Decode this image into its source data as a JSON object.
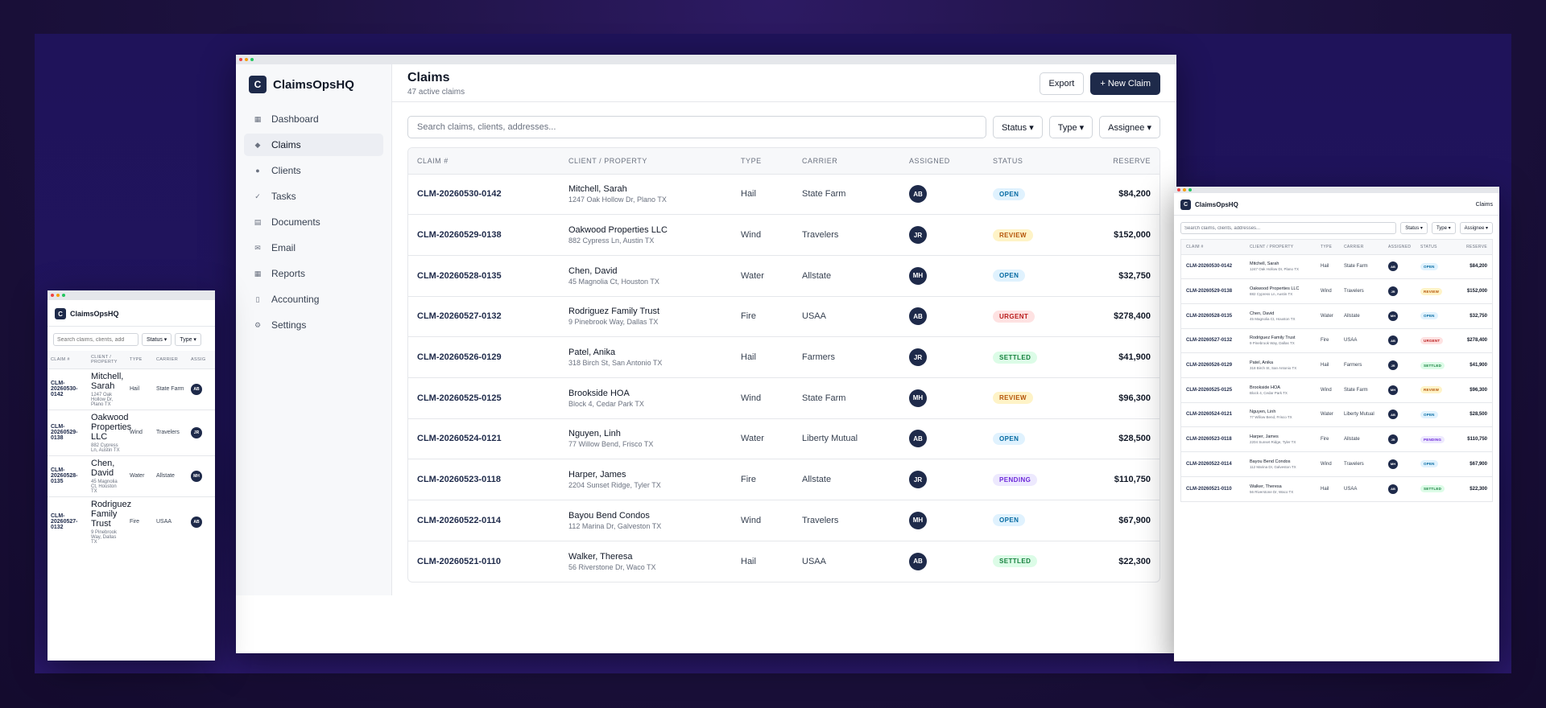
{
  "app": {
    "name": "ClaimsOpsHQ",
    "logo_letter": "C"
  },
  "sidebar": {
    "items": [
      {
        "label": "Dashboard",
        "icon": "dashboard-icon",
        "glyph": "▦"
      },
      {
        "label": "Claims",
        "icon": "claims-icon",
        "glyph": "◆"
      },
      {
        "label": "Clients",
        "icon": "clients-icon",
        "glyph": "●"
      },
      {
        "label": "Tasks",
        "icon": "tasks-icon",
        "glyph": "✓"
      },
      {
        "label": "Documents",
        "icon": "documents-icon",
        "glyph": "▤"
      },
      {
        "label": "Email",
        "icon": "email-icon",
        "glyph": "✉"
      },
      {
        "label": "Reports",
        "icon": "reports-icon",
        "glyph": "▦"
      },
      {
        "label": "Accounting",
        "icon": "accounting-icon",
        "glyph": "▯"
      },
      {
        "label": "Settings",
        "icon": "settings-icon",
        "glyph": "⚙"
      }
    ],
    "active": "Claims"
  },
  "header": {
    "title": "Claims",
    "subtitle": "47 active claims",
    "export_label": "Export",
    "new_claim_label": "+ New Claim"
  },
  "filters": {
    "search_placeholder": "Search claims, clients, addresses...",
    "status_label": "Status ▾",
    "type_label": "Type ▾",
    "assignee_label": "Assignee ▾"
  },
  "table": {
    "columns": [
      "CLAIM #",
      "CLIENT / PROPERTY",
      "TYPE",
      "CARRIER",
      "ASSIGNED",
      "STATUS",
      "RESERVE"
    ],
    "rows": [
      {
        "id": "CLM-20260530-0142",
        "client": "Mitchell, Sarah",
        "address": "1247 Oak Hollow Dr, Plano TX",
        "type": "Hail",
        "carrier": "State Farm",
        "assigned": "AB",
        "status": "OPEN",
        "reserve": "$84,200"
      },
      {
        "id": "CLM-20260529-0138",
        "client": "Oakwood Properties LLC",
        "address": "882 Cypress Ln, Austin TX",
        "type": "Wind",
        "carrier": "Travelers",
        "assigned": "JR",
        "status": "REVIEW",
        "reserve": "$152,000"
      },
      {
        "id": "CLM-20260528-0135",
        "client": "Chen, David",
        "address": "45 Magnolia Ct, Houston TX",
        "type": "Water",
        "carrier": "Allstate",
        "assigned": "MH",
        "status": "OPEN",
        "reserve": "$32,750"
      },
      {
        "id": "CLM-20260527-0132",
        "client": "Rodriguez Family Trust",
        "address": "9 Pinebrook Way, Dallas TX",
        "type": "Fire",
        "carrier": "USAA",
        "assigned": "AB",
        "status": "URGENT",
        "reserve": "$278,400"
      },
      {
        "id": "CLM-20260526-0129",
        "client": "Patel, Anika",
        "address": "318 Birch St, San Antonio TX",
        "type": "Hail",
        "carrier": "Farmers",
        "assigned": "JR",
        "status": "SETTLED",
        "reserve": "$41,900"
      },
      {
        "id": "CLM-20260525-0125",
        "client": "Brookside HOA",
        "address": "Block 4, Cedar Park TX",
        "type": "Wind",
        "carrier": "State Farm",
        "assigned": "MH",
        "status": "REVIEW",
        "reserve": "$96,300"
      },
      {
        "id": "CLM-20260524-0121",
        "client": "Nguyen, Linh",
        "address": "77 Willow Bend, Frisco TX",
        "type": "Water",
        "carrier": "Liberty Mutual",
        "assigned": "AB",
        "status": "OPEN",
        "reserve": "$28,500"
      },
      {
        "id": "CLM-20260523-0118",
        "client": "Harper, James",
        "address": "2204 Sunset Ridge, Tyler TX",
        "type": "Fire",
        "carrier": "Allstate",
        "assigned": "JR",
        "status": "PENDING",
        "reserve": "$110,750"
      },
      {
        "id": "CLM-20260522-0114",
        "client": "Bayou Bend Condos",
        "address": "112 Marina Dr, Galveston TX",
        "type": "Wind",
        "carrier": "Travelers",
        "assigned": "MH",
        "status": "OPEN",
        "reserve": "$67,900"
      },
      {
        "id": "CLM-20260521-0110",
        "client": "Walker, Theresa",
        "address": "56 Riverstone Dr, Waco TX",
        "type": "Hail",
        "carrier": "USAA",
        "assigned": "AB",
        "status": "SETTLED",
        "reserve": "$22,300"
      }
    ]
  },
  "small_view": {
    "search_placeholder": "Search claims, clients, add",
    "columns": [
      "CLAIM #",
      "CLIENT / PROPERTY",
      "TYPE",
      "CARRIER",
      "ASSIG"
    ],
    "rows": [
      {
        "id": "CLM-20260530-0142",
        "client": "Mitchell, Sarah",
        "address": "1247 Oak Hollow Dr, Plano TX",
        "type": "Hail",
        "carrier": "State Farm",
        "assigned": "AB"
      },
      {
        "id": "CLM-20260529-0138",
        "client": "Oakwood Properties LLC",
        "address": "882 Cypress Ln, Austin TX",
        "type": "Wind",
        "carrier": "Travelers",
        "assigned": "JR"
      },
      {
        "id": "CLM-20260528-0135",
        "client": "Chen, David",
        "address": "45 Magnolia Ct, Houston TX",
        "type": "Water",
        "carrier": "Allstate",
        "assigned": "MH"
      },
      {
        "id": "CLM-20260527-0132",
        "client": "Rodriguez Family Trust",
        "address": "9 Pinebrook Way, Dallas TX",
        "type": "Fire",
        "carrier": "USAA",
        "assigned": "AB"
      }
    ]
  },
  "mid_view": {
    "title": "Claims"
  },
  "colors": {
    "brand_navy": "#1e2a4a",
    "open": "#0369a1",
    "review": "#b45309",
    "urgent": "#b91c1c",
    "settled": "#15803d",
    "pending": "#6d28d9"
  }
}
